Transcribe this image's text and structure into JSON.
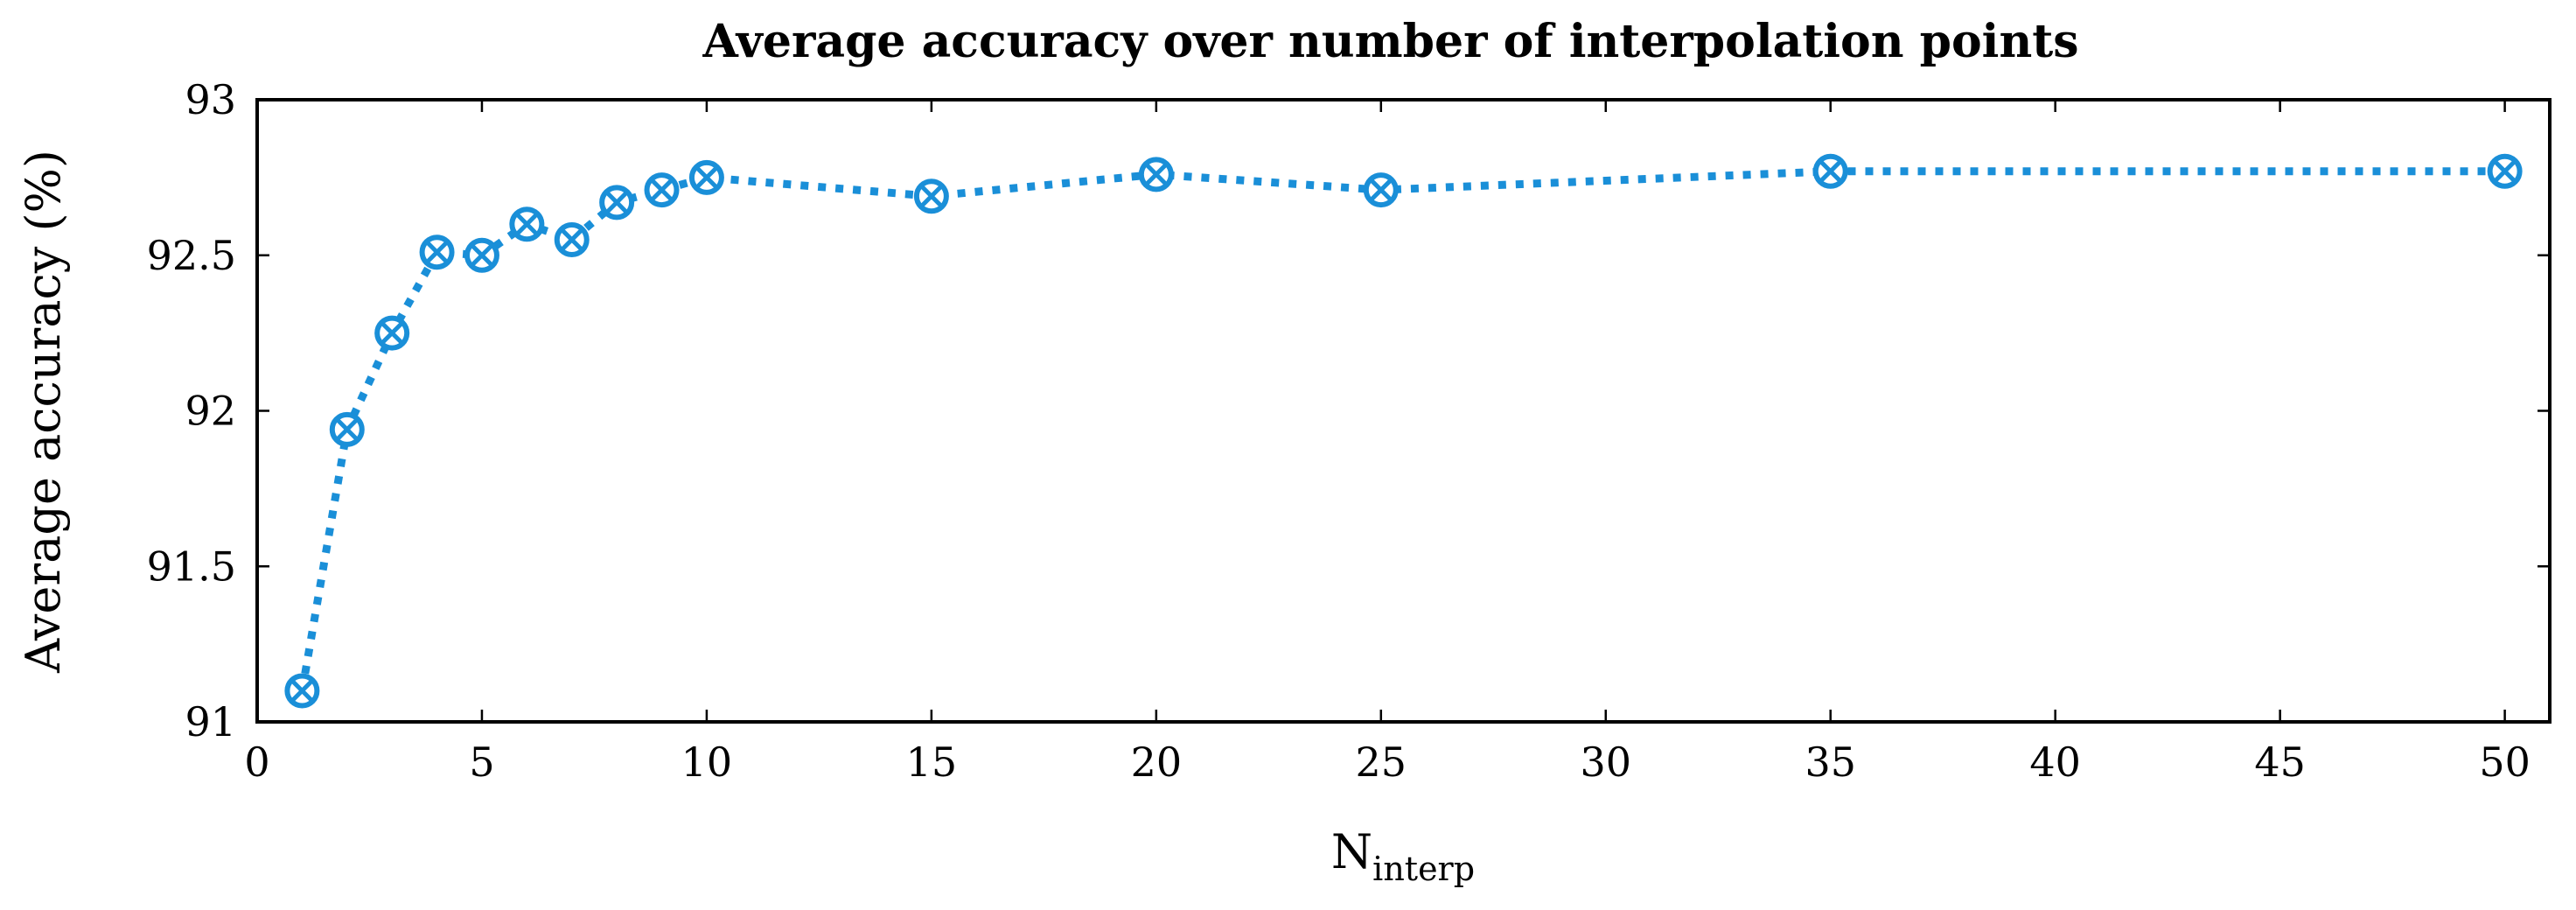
{
  "chart_data": {
    "type": "line",
    "title": "Average accuracy over number of interpolation points",
    "xlabel": "N",
    "xlabel_subscript": "interp",
    "ylabel": "Average accuracy (%)",
    "xlim": [
      0,
      51
    ],
    "ylim": [
      91,
      93
    ],
    "xticks": [
      0,
      5,
      10,
      15,
      20,
      25,
      30,
      35,
      40,
      45,
      50
    ],
    "yticks": [
      91,
      91.5,
      92,
      92.5,
      93
    ],
    "ytick_labels": [
      "91",
      "91.5",
      "92",
      "92.5",
      "93"
    ],
    "grid": false,
    "series": [
      {
        "color": "#1a8fd8",
        "line_style": "dotted",
        "marker": "circle-cross",
        "x": [
          1,
          2,
          3,
          4,
          5,
          6,
          7,
          8,
          9,
          10,
          15,
          20,
          25,
          35,
          50
        ],
        "y": [
          91.1,
          91.94,
          92.25,
          92.51,
          92.5,
          92.6,
          92.55,
          92.67,
          92.71,
          92.75,
          92.69,
          92.76,
          92.71,
          92.77,
          92.77
        ]
      }
    ]
  }
}
